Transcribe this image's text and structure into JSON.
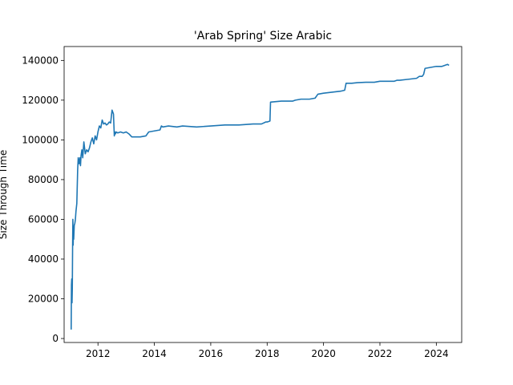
{
  "chart_data": {
    "type": "line",
    "title": "'Arab Spring' Size Arabic",
    "xlabel": "",
    "ylabel": "Size Through Time",
    "xlim": [
      2010.8,
      2024.9
    ],
    "ylim": [
      -2000,
      147000
    ],
    "xticks": [
      2012,
      2014,
      2016,
      2018,
      2020,
      2022,
      2024
    ],
    "xtick_labels": [
      "2012",
      "2014",
      "2016",
      "2018",
      "2020",
      "2022",
      "2024"
    ],
    "yticks": [
      0,
      20000,
      40000,
      60000,
      80000,
      100000,
      120000,
      140000
    ],
    "ytick_labels": [
      "0",
      "20000",
      "40000",
      "60000",
      "80000",
      "100000",
      "120000",
      "140000"
    ],
    "grid": false,
    "series": [
      {
        "color": "#1f77b4",
        "x": [
          2011.05,
          2011.06,
          2011.07,
          2011.08,
          2011.09,
          2011.1,
          2011.11,
          2011.12,
          2011.13,
          2011.14,
          2011.16,
          2011.18,
          2011.2,
          2011.22,
          2011.25,
          2011.28,
          2011.3,
          2011.33,
          2011.36,
          2011.38,
          2011.4,
          2011.43,
          2011.46,
          2011.5,
          2011.55,
          2011.6,
          2011.65,
          2011.7,
          2011.75,
          2011.8,
          2011.85,
          2011.9,
          2011.95,
          2012.0,
          2012.05,
          2012.1,
          2012.15,
          2012.2,
          2012.25,
          2012.3,
          2012.35,
          2012.4,
          2012.45,
          2012.5,
          2012.55,
          2012.58,
          2012.6,
          2012.62,
          2012.65,
          2012.7,
          2012.8,
          2012.9,
          2013.0,
          2013.1,
          2013.2,
          2013.5,
          2013.7,
          2013.8,
          2014.0,
          2014.2,
          2014.25,
          2014.3,
          2014.5,
          2014.8,
          2015.0,
          2015.5,
          2016.0,
          2016.5,
          2017.0,
          2017.5,
          2017.8,
          2017.95,
          2018.0,
          2018.1,
          2018.12,
          2018.5,
          2018.9,
          2019.0,
          2019.2,
          2019.5,
          2019.7,
          2019.8,
          2020.0,
          2020.3,
          2020.6,
          2020.75,
          2020.8,
          2021.0,
          2021.2,
          2021.5,
          2021.8,
          2022.0,
          2022.3,
          2022.5,
          2022.6,
          2022.7,
          2023.0,
          2023.3,
          2023.4,
          2023.5,
          2023.55,
          2023.6,
          2023.8,
          2024.0,
          2024.2,
          2024.3,
          2024.4,
          2024.45
        ],
        "y": [
          4500,
          27000,
          30000,
          18000,
          25000,
          45000,
          60000,
          47000,
          55000,
          50000,
          57000,
          58000,
          60000,
          64000,
          68000,
          85000,
          91000,
          88000,
          91000,
          87000,
          92000,
          95000,
          91000,
          99000,
          93000,
          95000,
          94000,
          96000,
          99000,
          101000,
          98000,
          102000,
          100000,
          104000,
          107000,
          106000,
          110000,
          108000,
          108500,
          107500,
          108000,
          109000,
          108500,
          115000,
          113000,
          102000,
          104000,
          103000,
          104000,
          103500,
          104000,
          103500,
          104000,
          103000,
          101500,
          101500,
          102000,
          104000,
          104500,
          105000,
          107000,
          106500,
          107000,
          106500,
          107000,
          106500,
          107000,
          107500,
          107500,
          108000,
          108000,
          109000,
          109000,
          109500,
          119000,
          119500,
          119500,
          120000,
          120500,
          120500,
          121000,
          123000,
          123500,
          124000,
          124500,
          125000,
          128500,
          128500,
          128800,
          129000,
          129000,
          129500,
          129500,
          129500,
          130000,
          130000,
          130500,
          131000,
          132000,
          132000,
          133000,
          136000,
          136500,
          137000,
          137000,
          137500,
          138000,
          137500
        ]
      }
    ]
  }
}
